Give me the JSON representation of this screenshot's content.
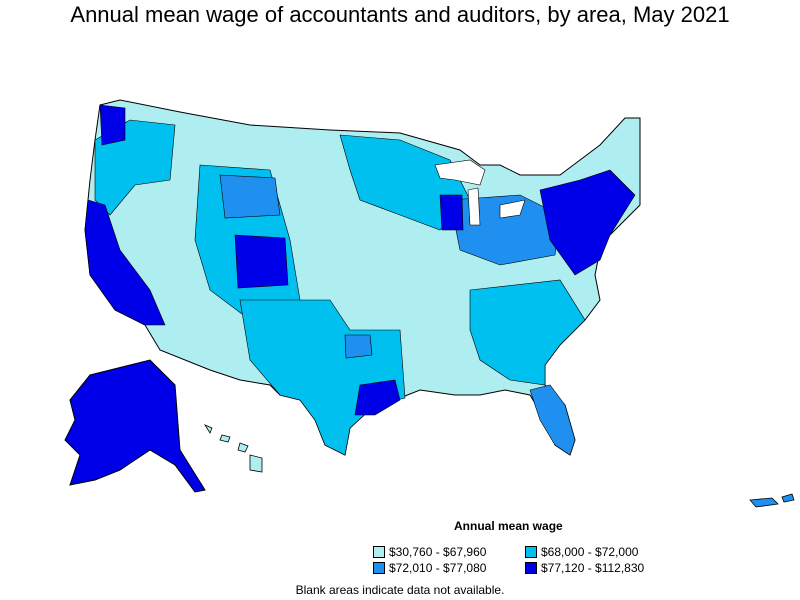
{
  "title": "Annual mean wage of accountants and auditors, by area, May 2021",
  "legend": {
    "title": "Annual mean wage",
    "items": [
      {
        "label": "$30,760 - $67,960",
        "color": "#aeeef0"
      },
      {
        "label": "$68,000 - $72,000",
        "color": "#00c0f0"
      },
      {
        "label": "$72,010 - $77,080",
        "color": "#2090f0"
      },
      {
        "label": "$77,120 - $112,830",
        "color": "#0000e8"
      }
    ]
  },
  "footnote": "Blank areas indicate data not available.",
  "colors": {
    "outline": "#000000",
    "background": "#ffffff"
  }
}
